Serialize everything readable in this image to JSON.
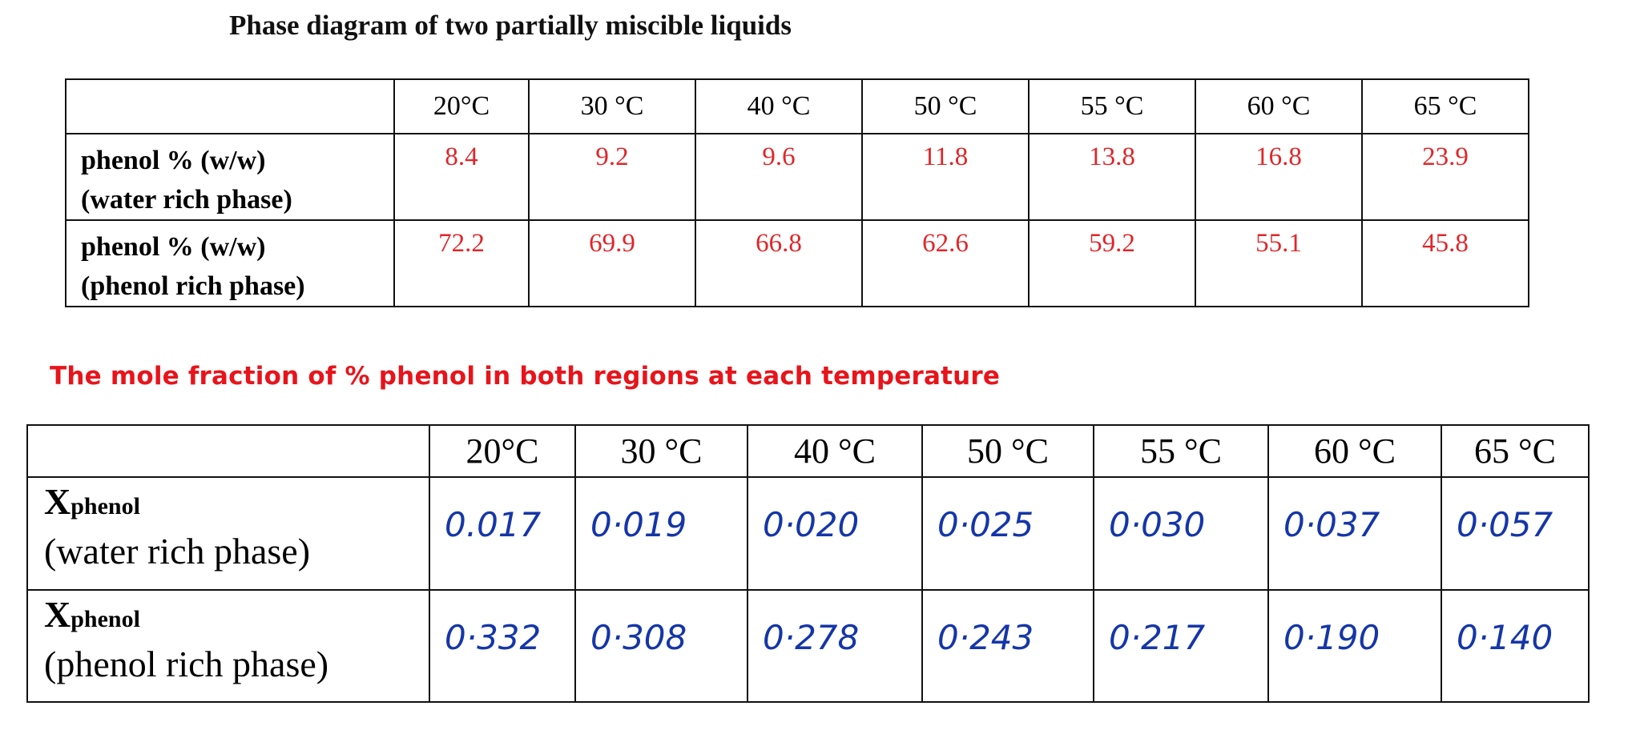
{
  "title": "Phase diagram of two partially miscible liquids",
  "table1": {
    "columns": [
      "20°C",
      "30 °C",
      "40 °C",
      "50 °C",
      "55 °C",
      "60 °C",
      "65 °C"
    ],
    "rows": [
      {
        "label_lines": [
          "phenol % (w/w)",
          "(water rich phase)"
        ],
        "cells": [
          "8.4",
          "9.2",
          "9.6",
          "11.8",
          "13.8",
          "16.8",
          "23.9"
        ]
      },
      {
        "label_lines": [
          "phenol % (w/w)",
          "(phenol rich phase)"
        ],
        "cells": [
          "72.2",
          "69.9",
          "66.8",
          "62.6",
          "59.2",
          "55.1",
          "45.8"
        ]
      }
    ]
  },
  "subtitle": "The mole fraction of % phenol in both regions at each temperature",
  "table2": {
    "columns": [
      "20°C",
      "30 °C",
      "40 °C",
      "50 °C",
      "55 °C",
      "60 °C",
      "65 °C"
    ],
    "rows": [
      {
        "symbol": "X",
        "subscript": "phenol",
        "phase": "(water rich phase)",
        "cells": [
          "0.017",
          "0·019",
          "0·020",
          "0·025",
          "0·030",
          "0·037",
          "0·057"
        ]
      },
      {
        "symbol": "X",
        "subscript": "phenol",
        "phase": "(phenol rich phase)",
        "cells": [
          "0·332",
          "0·308",
          "0·278",
          "0·243",
          "0·217",
          "0·190",
          "0·140"
        ]
      }
    ]
  }
}
